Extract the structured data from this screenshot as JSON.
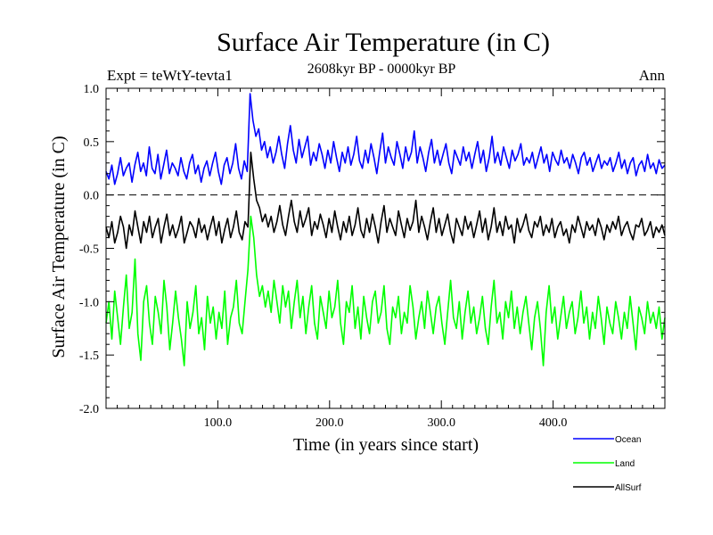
{
  "chart_data": {
    "type": "line",
    "title": "Surface Air Temperature (in C)",
    "subtitle": "2608kyr BP - 0000kyr BP",
    "expt_label": "Expt = teWtY-tevta1",
    "season_label": "Ann",
    "xlabel": "Time (in years since start)",
    "ylabel": "Surface Air Temperature (in C)",
    "xlim": [
      0,
      500
    ],
    "ylim": [
      -2.0,
      1.0
    ],
    "x_ticks": [
      100,
      200,
      300,
      400
    ],
    "x_tick_labels": [
      "100.0",
      "200.0",
      "300.0",
      "400.0"
    ],
    "y_ticks": [
      -2.0,
      -1.5,
      -1.0,
      -0.5,
      0.0,
      0.5,
      1.0
    ],
    "y_tick_labels": [
      "-2.0",
      "-1.5",
      "-1.0",
      "-0.5",
      "0.0",
      "0.5",
      "1.0"
    ],
    "reference_line": 0.0,
    "legend_position": "bottom-right",
    "series": [
      {
        "name": "Ocean",
        "color": "#0000ff",
        "values": [
          0.22,
          0.15,
          0.28,
          0.1,
          0.2,
          0.35,
          0.18,
          0.25,
          0.3,
          0.12,
          0.28,
          0.4,
          0.22,
          0.3,
          0.18,
          0.45,
          0.25,
          0.2,
          0.38,
          0.15,
          0.28,
          0.42,
          0.2,
          0.3,
          0.25,
          0.18,
          0.35,
          0.22,
          0.15,
          0.3,
          0.38,
          0.2,
          0.28,
          0.12,
          0.25,
          0.32,
          0.18,
          0.3,
          0.4,
          0.22,
          0.1,
          0.28,
          0.35,
          0.2,
          0.3,
          0.48,
          0.25,
          0.15,
          0.32,
          0.22,
          0.95,
          0.7,
          0.55,
          0.62,
          0.42,
          0.5,
          0.35,
          0.45,
          0.3,
          0.4,
          0.55,
          0.38,
          0.25,
          0.48,
          0.65,
          0.42,
          0.3,
          0.52,
          0.35,
          0.45,
          0.55,
          0.28,
          0.4,
          0.32,
          0.48,
          0.38,
          0.25,
          0.42,
          0.3,
          0.5,
          0.35,
          0.22,
          0.4,
          0.3,
          0.45,
          0.28,
          0.38,
          0.55,
          0.32,
          0.25,
          0.42,
          0.3,
          0.48,
          0.35,
          0.2,
          0.4,
          0.58,
          0.3,
          0.45,
          0.35,
          0.28,
          0.5,
          0.38,
          0.25,
          0.45,
          0.32,
          0.4,
          0.6,
          0.3,
          0.45,
          0.35,
          0.22,
          0.4,
          0.52,
          0.3,
          0.42,
          0.28,
          0.38,
          0.48,
          0.3,
          0.2,
          0.42,
          0.35,
          0.28,
          0.45,
          0.32,
          0.4,
          0.25,
          0.38,
          0.5,
          0.3,
          0.42,
          0.22,
          0.35,
          0.55,
          0.3,
          0.4,
          0.28,
          0.45,
          0.35,
          0.25,
          0.42,
          0.32,
          0.38,
          0.48,
          0.28,
          0.35,
          0.3,
          0.4,
          0.25,
          0.35,
          0.45,
          0.3,
          0.38,
          0.22,
          0.4,
          0.33,
          0.28,
          0.42,
          0.3,
          0.35,
          0.25,
          0.38,
          0.3,
          0.2,
          0.35,
          0.4,
          0.28,
          0.35,
          0.22,
          0.3,
          0.38,
          0.25,
          0.32,
          0.28,
          0.35,
          0.22,
          0.3,
          0.4,
          0.25,
          0.33,
          0.2,
          0.3,
          0.35,
          0.18,
          0.28,
          0.32,
          0.22,
          0.38,
          0.25,
          0.3,
          0.2,
          0.33,
          0.25,
          0.28
        ]
      },
      {
        "name": "Land",
        "color": "#00ff00",
        "values": [
          -1.2,
          -1.0,
          -1.35,
          -0.9,
          -1.15,
          -1.4,
          -1.05,
          -0.75,
          -1.25,
          -1.1,
          -0.6,
          -1.3,
          -1.55,
          -1.0,
          -0.85,
          -1.2,
          -1.4,
          -0.95,
          -1.1,
          -1.3,
          -0.8,
          -1.05,
          -1.45,
          -1.2,
          -0.9,
          -1.15,
          -1.35,
          -1.6,
          -1.0,
          -1.25,
          -1.1,
          -0.85,
          -1.3,
          -1.15,
          -1.45,
          -0.95,
          -1.2,
          -1.05,
          -1.35,
          -1.1,
          -1.25,
          -0.9,
          -1.4,
          -1.15,
          -1.05,
          -0.8,
          -1.2,
          -1.3,
          -1.0,
          -0.7,
          -0.2,
          -0.4,
          -0.75,
          -0.95,
          -0.85,
          -1.05,
          -0.9,
          -1.1,
          -0.8,
          -1.0,
          -1.2,
          -0.85,
          -1.05,
          -0.9,
          -1.25,
          -1.0,
          -0.8,
          -1.15,
          -0.95,
          -1.3,
          -1.05,
          -0.85,
          -1.2,
          -1.35,
          -0.95,
          -1.1,
          -1.25,
          -0.9,
          -1.15,
          -1.05,
          -0.8,
          -1.2,
          -1.4,
          -1.0,
          -1.1,
          -0.85,
          -1.25,
          -1.05,
          -1.35,
          -0.95,
          -1.15,
          -1.3,
          -1.0,
          -0.9,
          -1.2,
          -1.1,
          -0.85,
          -1.25,
          -1.4,
          -1.05,
          -1.15,
          -0.95,
          -1.3,
          -1.1,
          -1.2,
          -0.85,
          -1.05,
          -1.35,
          -1.15,
          -1.0,
          -1.25,
          -0.9,
          -1.1,
          -1.3,
          -1.05,
          -0.95,
          -1.2,
          -1.4,
          -1.1,
          -0.8,
          -1.15,
          -1.25,
          -1.0,
          -1.35,
          -1.1,
          -0.9,
          -1.2,
          -1.05,
          -1.3,
          -1.15,
          -0.95,
          -1.25,
          -1.4,
          -1.05,
          -0.8,
          -1.2,
          -1.1,
          -1.35,
          -1.0,
          -1.15,
          -0.9,
          -1.25,
          -1.05,
          -1.3,
          -1.1,
          -0.95,
          -1.2,
          -1.45,
          -1.15,
          -1.0,
          -1.25,
          -1.6,
          -1.1,
          -0.85,
          -1.2,
          -1.05,
          -1.35,
          -1.15,
          -0.95,
          -1.25,
          -1.1,
          -1.0,
          -1.3,
          -1.15,
          -0.9,
          -1.2,
          -1.05,
          -1.35,
          -1.1,
          -1.25,
          -0.95,
          -1.15,
          -1.4,
          -1.05,
          -1.2,
          -1.3,
          -1.0,
          -1.15,
          -1.35,
          -1.1,
          -1.25,
          -0.95,
          -1.2,
          -1.45,
          -1.05,
          -1.15,
          -1.3,
          -1.0,
          -1.2,
          -1.1,
          -1.25,
          -1.05,
          -1.35,
          -1.15
        ]
      },
      {
        "name": "AllSurf",
        "color": "#000000",
        "values": [
          -0.3,
          -0.4,
          -0.25,
          -0.45,
          -0.35,
          -0.2,
          -0.3,
          -0.5,
          -0.28,
          -0.38,
          -0.15,
          -0.3,
          -0.45,
          -0.25,
          -0.35,
          -0.2,
          -0.4,
          -0.3,
          -0.22,
          -0.45,
          -0.3,
          -0.18,
          -0.38,
          -0.28,
          -0.4,
          -0.32,
          -0.2,
          -0.45,
          -0.35,
          -0.25,
          -0.3,
          -0.4,
          -0.22,
          -0.35,
          -0.28,
          -0.42,
          -0.3,
          -0.2,
          -0.38,
          -0.25,
          -0.45,
          -0.32,
          -0.22,
          -0.4,
          -0.3,
          -0.15,
          -0.35,
          -0.42,
          -0.25,
          -0.3,
          0.4,
          0.15,
          -0.05,
          -0.12,
          -0.25,
          -0.18,
          -0.3,
          -0.2,
          -0.35,
          -0.25,
          -0.1,
          -0.28,
          -0.38,
          -0.2,
          -0.05,
          -0.25,
          -0.35,
          -0.15,
          -0.3,
          -0.22,
          -0.12,
          -0.38,
          -0.25,
          -0.32,
          -0.18,
          -0.28,
          -0.4,
          -0.22,
          -0.35,
          -0.15,
          -0.3,
          -0.42,
          -0.25,
          -0.35,
          -0.2,
          -0.38,
          -0.28,
          -0.12,
          -0.33,
          -0.4,
          -0.22,
          -0.35,
          -0.18,
          -0.3,
          -0.45,
          -0.25,
          -0.1,
          -0.35,
          -0.22,
          -0.3,
          -0.38,
          -0.15,
          -0.28,
          -0.4,
          -0.22,
          -0.33,
          -0.25,
          -0.05,
          -0.35,
          -0.2,
          -0.3,
          -0.42,
          -0.25,
          -0.12,
          -0.35,
          -0.22,
          -0.38,
          -0.28,
          -0.18,
          -0.35,
          -0.45,
          -0.22,
          -0.3,
          -0.38,
          -0.2,
          -0.32,
          -0.25,
          -0.4,
          -0.28,
          -0.15,
          -0.35,
          -0.22,
          -0.42,
          -0.3,
          -0.12,
          -0.35,
          -0.25,
          -0.38,
          -0.2,
          -0.32,
          -0.28,
          -0.45,
          -0.22,
          -0.35,
          -0.28,
          -0.18,
          -0.33,
          -0.4,
          -0.25,
          -0.3,
          -0.2,
          -0.38,
          -0.28,
          -0.35,
          -0.22,
          -0.4,
          -0.3,
          -0.25,
          -0.38,
          -0.32,
          -0.45,
          -0.28,
          -0.35,
          -0.2,
          -0.3,
          -0.4,
          -0.25,
          -0.33,
          -0.28,
          -0.38,
          -0.22,
          -0.3,
          -0.42,
          -0.28,
          -0.35,
          -0.25,
          -0.32,
          -0.2,
          -0.38,
          -0.3,
          -0.25,
          -0.35,
          -0.42,
          -0.28,
          -0.3,
          -0.22,
          -0.38,
          -0.33,
          -0.25,
          -0.4,
          -0.3,
          -0.35,
          -0.28,
          -0.38
        ]
      }
    ]
  }
}
